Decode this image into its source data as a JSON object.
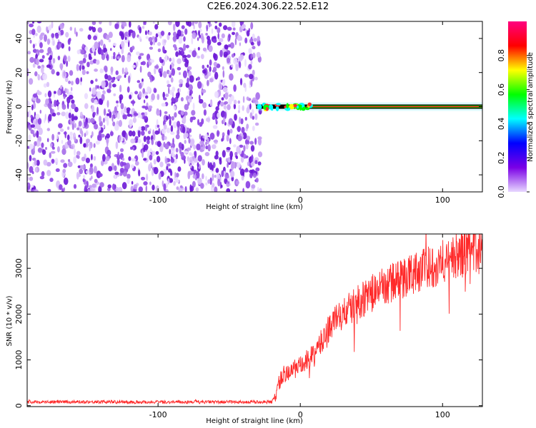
{
  "chart_data": [
    {
      "type": "heatmap",
      "title": "C2E6.2024.306.22.52.E12",
      "xlabel": "Height of straight line (km)",
      "ylabel": "Frequency (Hz)",
      "xlim": [
        -192,
        128
      ],
      "ylim": [
        -50,
        50
      ],
      "x_ticks": [
        -100,
        0,
        100
      ],
      "y_ticks": [
        -40,
        -20,
        0,
        20,
        40
      ],
      "noise_region_x": [
        -192,
        -28
      ],
      "signal_line_frequency": 0,
      "colorbar": {
        "label": "Normalized spectral amplitude",
        "range": [
          0,
          1
        ],
        "ticks": [
          "0.0",
          "0.2",
          "0.4",
          "0.6",
          "0.8"
        ],
        "colors": [
          "#e8d8ff",
          "#7a00e6",
          "#0000ff",
          "#00ffff",
          "#00ff00",
          "#ffff00",
          "#ff0000",
          "#ff0080"
        ]
      }
    },
    {
      "type": "line",
      "xlabel": "Height of straight line (km)",
      "ylabel": "SNR (10 * v/v)",
      "xlim": [
        -192,
        128
      ],
      "ylim": [
        -20,
        3750
      ],
      "x_ticks": [
        -100,
        0,
        100
      ],
      "y_ticks": [
        0,
        1000,
        2000,
        3000
      ],
      "color": "#ff2a2a",
      "x": [
        -192,
        -175,
        -150,
        -125,
        -100,
        -75,
        -50,
        -30,
        -20,
        -17,
        -15,
        -12,
        -10,
        -5,
        0,
        5,
        10,
        15,
        20,
        25,
        30,
        40,
        50,
        60,
        70,
        80,
        90,
        100,
        110,
        120,
        128
      ],
      "values": [
        80,
        80,
        85,
        80,
        80,
        80,
        80,
        80,
        80,
        250,
        500,
        700,
        650,
        800,
        850,
        1000,
        1100,
        1400,
        1700,
        1900,
        2000,
        2250,
        2450,
        2620,
        2760,
        2900,
        3020,
        3150,
        3260,
        3350,
        3400
      ]
    }
  ]
}
